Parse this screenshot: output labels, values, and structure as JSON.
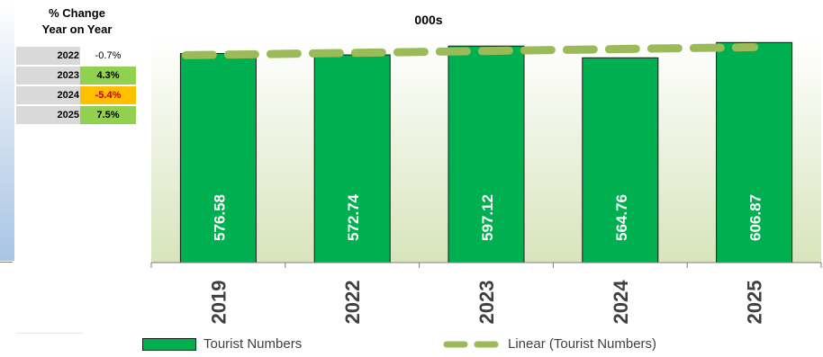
{
  "yoy": {
    "heading_line1": "% Change",
    "heading_line2": "Year on Year",
    "rows": [
      {
        "year": "2022",
        "change": "-0.7%"
      },
      {
        "year": "2023",
        "change": "4.3%"
      },
      {
        "year": "2024",
        "change": "-5.4%"
      },
      {
        "year": "2025",
        "change": "7.5%"
      }
    ]
  },
  "colors": {
    "bar": "#00b050",
    "trend": "#9bbb59",
    "positive": "#92d050",
    "negative": "#ffc000",
    "plot_bg_top": "#ffffff",
    "plot_bg_bottom": "#d8e4bc"
  },
  "chart_data": {
    "type": "bar",
    "title": "000s",
    "categories": [
      "2019",
      "2022",
      "2023",
      "2024",
      "2025"
    ],
    "series": [
      {
        "name": "Tourist Numbers",
        "values": [
          576.58,
          572.74,
          597.12,
          564.76,
          606.87
        ]
      }
    ],
    "trendline": {
      "name": "Linear (Tourist Numbers)",
      "type": "linear"
    },
    "data_labels": [
      "576.58",
      "572.74",
      "597.12",
      "564.76",
      "606.87"
    ],
    "ylim": [
      0,
      620
    ],
    "grid": false,
    "legend": "bottom"
  }
}
